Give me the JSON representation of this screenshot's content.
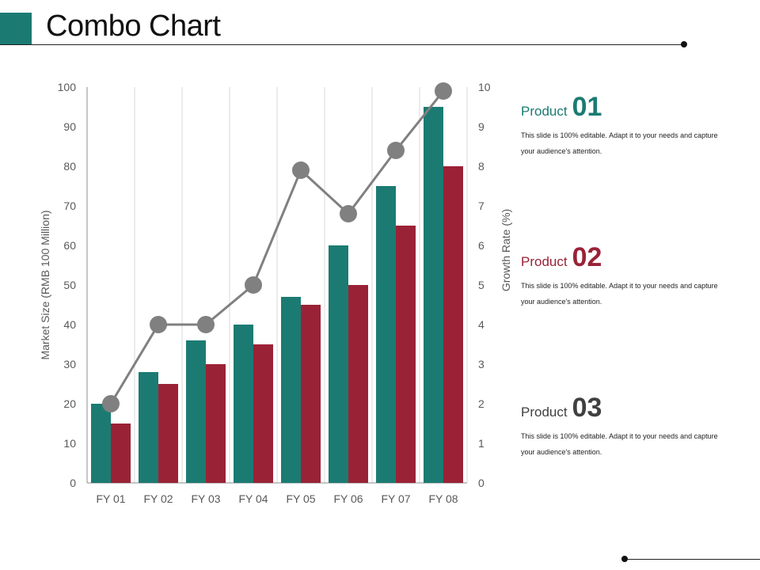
{
  "page": {
    "title": "Combo Chart"
  },
  "chart_data": {
    "type": "bar",
    "categories": [
      "FY 01",
      "FY 02",
      "FY 03",
      "FY 04",
      "FY 05",
      "FY 06",
      "FY 07",
      "FY 08"
    ],
    "series": [
      {
        "kind": "bar",
        "axis": "left",
        "color": "#1b7b72",
        "values": [
          20,
          28,
          36,
          40,
          47,
          60,
          75,
          95
        ]
      },
      {
        "kind": "bar",
        "axis": "left",
        "color": "#9a2236",
        "values": [
          15,
          25,
          30,
          35,
          45,
          50,
          65,
          80
        ]
      },
      {
        "kind": "line",
        "axis": "right",
        "color": "#808080",
        "values": [
          2,
          4,
          4,
          5,
          7.9,
          6.8,
          8.4,
          9.9
        ]
      }
    ],
    "ylabel": "Market Size (RMB 100 Million)",
    "ylabel_right": "Growth Rate (%)",
    "ylim": [
      0,
      100
    ],
    "ylim_right": [
      0,
      10
    ],
    "yticks": [
      "0",
      "10",
      "20",
      "30",
      "40",
      "50",
      "60",
      "70",
      "80",
      "90",
      "100"
    ],
    "yticks_right": [
      "0",
      "1",
      "2",
      "3",
      "4",
      "5",
      "6",
      "7",
      "8",
      "9",
      "10"
    ],
    "grid": "vertical"
  },
  "products": [
    {
      "word": "Product",
      "number": "01",
      "desc": "This slide is 100% editable.  Adapt it to your needs and capture your audience's attention."
    },
    {
      "word": "Product",
      "number": "02",
      "desc": "This slide is 100% editable.  Adapt it to your needs and capture your audience's attention."
    },
    {
      "word": "Product",
      "number": "03",
      "desc": "This slide is 100% editable.  Adapt it to your needs and capture your audience's attention."
    }
  ]
}
